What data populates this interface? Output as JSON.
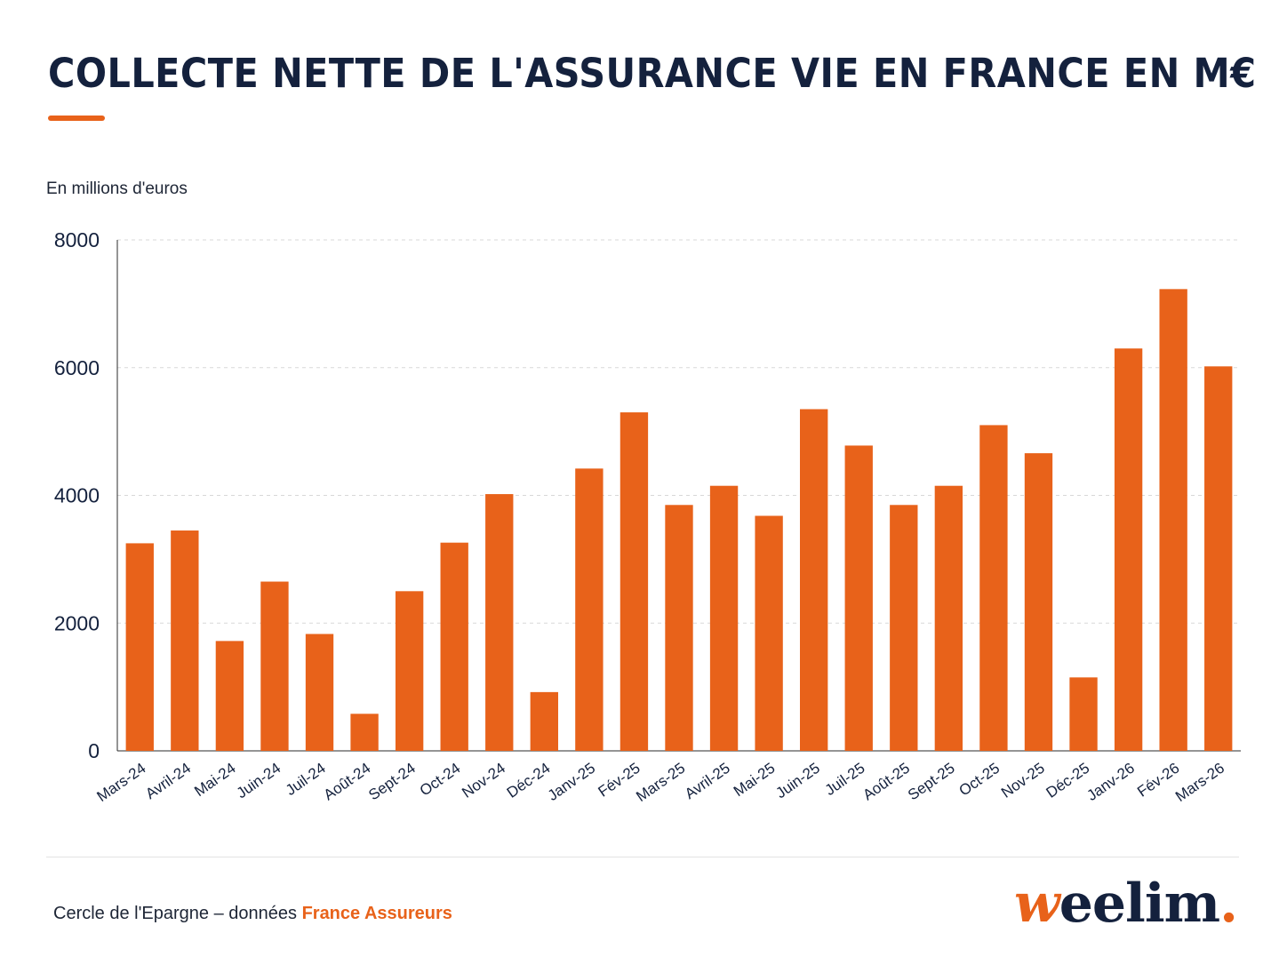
{
  "header": {
    "title": "COLLECTE NETTE DE L'ASSURANCE VIE EN FRANCE EN M€"
  },
  "chart_data": {
    "type": "bar",
    "title": "COLLECTE NETTE DE L'ASSURANCE VIE EN FRANCE EN M€",
    "unit_label": "En millions d'euros",
    "categories": [
      "Mars-24",
      "Avril-24",
      "Mai-24",
      "Juin-24",
      "Juil-24",
      "Août-24",
      "Sept-24",
      "Oct-24",
      "Nov-24",
      "Déc-24",
      "Janv-25",
      "Fév-25",
      "Mars-25",
      "Avril-25",
      "Mai-25",
      "Juin-25",
      "Juil-25",
      "Août-25",
      "Sept-25",
      "Oct-25",
      "Nov-25",
      "Déc-25",
      "Janv-26",
      "Fév-26",
      "Mars-26"
    ],
    "values": [
      3250,
      3450,
      1720,
      2650,
      1830,
      580,
      2500,
      3260,
      4020,
      920,
      4420,
      5300,
      3850,
      4150,
      3680,
      5350,
      4780,
      3850,
      4150,
      5100,
      4660,
      1150,
      6300,
      7230,
      6020
    ],
    "ylim": [
      0,
      8000
    ],
    "yticks": [
      0,
      2000,
      4000,
      6000,
      8000
    ],
    "grid": true,
    "bar_color": "#e8621a"
  },
  "footer": {
    "source_prefix": "Cercle de l'Epargne – données ",
    "source_highlight": "France Assureurs",
    "brand_first": "w",
    "brand_rest": "eelim",
    "brand_dot": "."
  }
}
